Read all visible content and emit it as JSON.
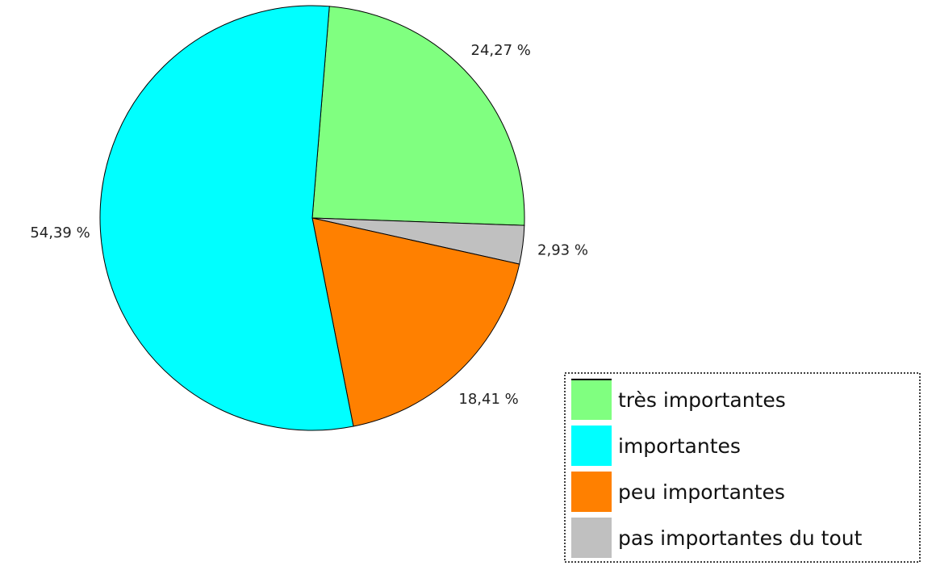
{
  "chart_data": {
    "type": "pie",
    "slices": [
      {
        "label": "très importantes",
        "value": 24.27,
        "display": "24,27 %",
        "color": "#80ff80"
      },
      {
        "label": "pas importantes du tout",
        "value": 2.93,
        "display": "2,93 %",
        "color": "#c0c0c0"
      },
      {
        "label": "peu importantes",
        "value": 18.41,
        "display": "18,41 %",
        "color": "#ff8000"
      },
      {
        "label": "importantes",
        "value": 54.39,
        "display": "54,39 %",
        "color": "#00ffff"
      }
    ],
    "legend": {
      "placement": "bottom-right",
      "entries": [
        {
          "label": "très importantes",
          "color": "#80ff80"
        },
        {
          "label": "importantes",
          "color": "#00ffff"
        },
        {
          "label": "peu importantes",
          "color": "#ff8000"
        },
        {
          "label": "pas importantes du tout",
          "color": "#c0c0c0"
        }
      ]
    }
  }
}
